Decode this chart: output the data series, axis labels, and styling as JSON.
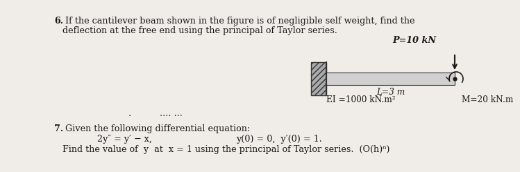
{
  "bg_color": "#f0ede8",
  "text_color": "#1a1a1a",
  "q6_bold": "6.",
  "q6_line1": " If the cantilever beam shown in the figure is of negligible self weight, find the",
  "q6_line2": "deflection at the free end using the principal of Taylor series.",
  "p_label": "P=10 kN",
  "beam_label_L": "L=3 m",
  "beam_label_EI": "EI =1000 kN.m²",
  "beam_label_M": "M=20 kN.m",
  "dots_label": ".... ...",
  "dot_label": ".",
  "q7_bold": "7.",
  "q7_line1": " Given the following differential equation:",
  "q7_eq1": "2y″ = y′ − x,",
  "q7_eq2": "y(0) = 0,  y′(0) = 1.",
  "q7_line2": "Find the value of  y  at  x = 1 using the principal of Taylor series.  (O(h)⁶)"
}
